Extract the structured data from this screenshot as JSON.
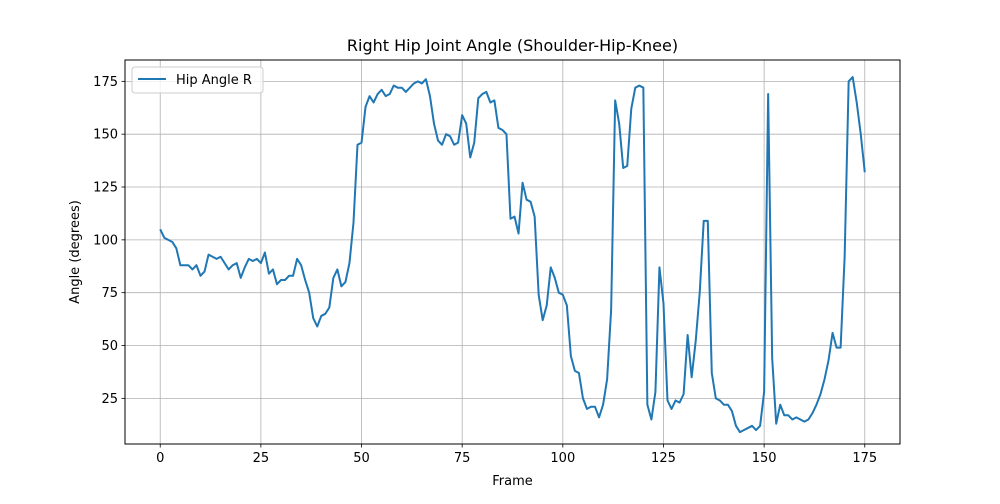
{
  "chart_data": {
    "type": "line",
    "title": "Right Hip Joint Angle (Shoulder-Hip-Knee)",
    "xlabel": "Frame",
    "ylabel": "Angle (degrees)",
    "xlim": [
      -8.75,
      183.75
    ],
    "ylim": [
      3.4,
      185.1
    ],
    "xticks": [
      0,
      25,
      50,
      75,
      100,
      125,
      150,
      175
    ],
    "yticks": [
      25,
      50,
      75,
      100,
      125,
      150,
      175
    ],
    "grid": true,
    "legend": "top-left",
    "series": [
      {
        "name": "Hip Angle R",
        "color": "#1f77b4",
        "x": [
          0,
          1,
          2,
          3,
          4,
          5,
          6,
          7,
          8,
          9,
          10,
          11,
          12,
          13,
          14,
          15,
          16,
          17,
          18,
          19,
          20,
          21,
          22,
          23,
          24,
          25,
          26,
          27,
          28,
          29,
          30,
          31,
          32,
          33,
          34,
          35,
          36,
          37,
          38,
          39,
          40,
          41,
          42,
          43,
          44,
          45,
          46,
          47,
          48,
          49,
          50,
          51,
          52,
          53,
          54,
          55,
          56,
          57,
          58,
          59,
          60,
          61,
          62,
          63,
          64,
          65,
          66,
          67,
          68,
          69,
          70,
          71,
          72,
          73,
          74,
          75,
          76,
          77,
          78,
          79,
          80,
          81,
          82,
          83,
          84,
          85,
          86,
          87,
          88,
          89,
          90,
          91,
          92,
          93,
          94,
          95,
          96,
          97,
          98,
          99,
          100,
          101,
          102,
          103,
          104,
          105,
          106,
          107,
          108,
          109,
          110,
          111,
          112,
          113,
          114,
          115,
          116,
          117,
          118,
          119,
          120,
          121,
          122,
          123,
          124,
          125,
          126,
          127,
          128,
          129,
          130,
          131,
          132,
          133,
          134,
          135,
          136,
          137,
          138,
          139,
          140,
          141,
          142,
          143,
          144,
          145,
          146,
          147,
          148,
          149,
          150,
          151,
          152,
          153,
          154,
          155,
          156,
          157,
          158,
          159,
          160,
          161,
          162,
          163,
          164,
          165,
          166,
          167,
          168,
          169,
          170,
          171,
          172,
          173,
          174,
          175
        ],
        "values": [
          105,
          101,
          100,
          99,
          96,
          88,
          88,
          88,
          86,
          88,
          83,
          85,
          93,
          92,
          91,
          92,
          89,
          86,
          88,
          89,
          82,
          87,
          91,
          90,
          91,
          89,
          94,
          84,
          86,
          79,
          81,
          81,
          83,
          83,
          91,
          88,
          81,
          75,
          63,
          59,
          64,
          65,
          68,
          82,
          86,
          78,
          80,
          89,
          108,
          145,
          146,
          163,
          168,
          165,
          169,
          171,
          168,
          169,
          173,
          172,
          172,
          170,
          172,
          174,
          175,
          174,
          176,
          168,
          155,
          147,
          145,
          150,
          149,
          145,
          146,
          159,
          155,
          139,
          146,
          167,
          169,
          170,
          165,
          166,
          153,
          152,
          150,
          110,
          111,
          103,
          127,
          119,
          118,
          111,
          74,
          62,
          69,
          87,
          82,
          75,
          74,
          69,
          45,
          38,
          37,
          25,
          20,
          21,
          21,
          16,
          22,
          34,
          67,
          166,
          155,
          134,
          135,
          162,
          172,
          173,
          172,
          22,
          15,
          28,
          87,
          70,
          24,
          20,
          24,
          23,
          27,
          55,
          35,
          52,
          75,
          109,
          109,
          37,
          25,
          24,
          22,
          22,
          19,
          12,
          9,
          10,
          11,
          12,
          10,
          12,
          28,
          169,
          44,
          13,
          22,
          17,
          17,
          15,
          16,
          15,
          14,
          15,
          18,
          22,
          27,
          34,
          43,
          56,
          49,
          49,
          92,
          175,
          177,
          165,
          150,
          132
        ]
      }
    ]
  }
}
